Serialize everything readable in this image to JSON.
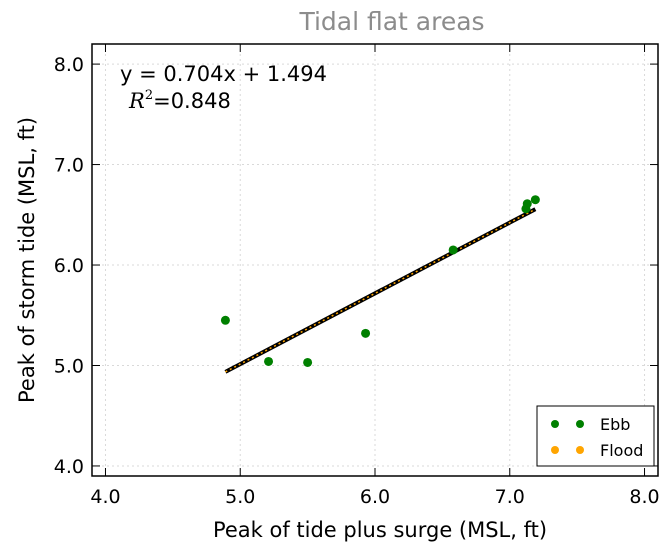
{
  "chart_data": {
    "type": "scatter",
    "title": "Tidal flat areas",
    "xlabel": "Peak of tide plus surge (MSL, ft)",
    "ylabel": "Peak of storm tide (MSL, ft)",
    "xlim": [
      3.9,
      8.1
    ],
    "ylim": [
      3.9,
      8.2
    ],
    "xticks": [
      "4.0",
      "5.0",
      "6.0",
      "7.0",
      "8.0"
    ],
    "yticks": [
      "4.0",
      "5.0",
      "6.0",
      "7.0",
      "8.0"
    ],
    "xtick_values": [
      4.0,
      5.0,
      6.0,
      7.0,
      8.0
    ],
    "ytick_values": [
      4.0,
      5.0,
      6.0,
      7.0,
      8.0
    ],
    "grid": true,
    "legend_position": "bottom-right",
    "series": [
      {
        "name": "Ebb",
        "color": "#008000",
        "points": [
          {
            "x": 4.89,
            "y": 5.45
          },
          {
            "x": 5.21,
            "y": 5.04
          },
          {
            "x": 5.5,
            "y": 5.03
          },
          {
            "x": 5.93,
            "y": 5.32
          },
          {
            "x": 6.58,
            "y": 6.15
          },
          {
            "x": 7.12,
            "y": 6.56
          },
          {
            "x": 7.13,
            "y": 6.61
          },
          {
            "x": 7.19,
            "y": 6.65
          }
        ]
      },
      {
        "name": "Flood",
        "color": "#ffa500",
        "points": []
      }
    ],
    "fit": {
      "slope": 0.704,
      "intercept": 1.494,
      "x_range": [
        4.89,
        7.19
      ],
      "color": "#000000",
      "overlay_color": "#ffa500"
    },
    "annotations": {
      "equation": "y = 0.704x + 1.494",
      "r2_label": "R",
      "r2_sup": "2",
      "r2_value": "=0.848"
    }
  }
}
